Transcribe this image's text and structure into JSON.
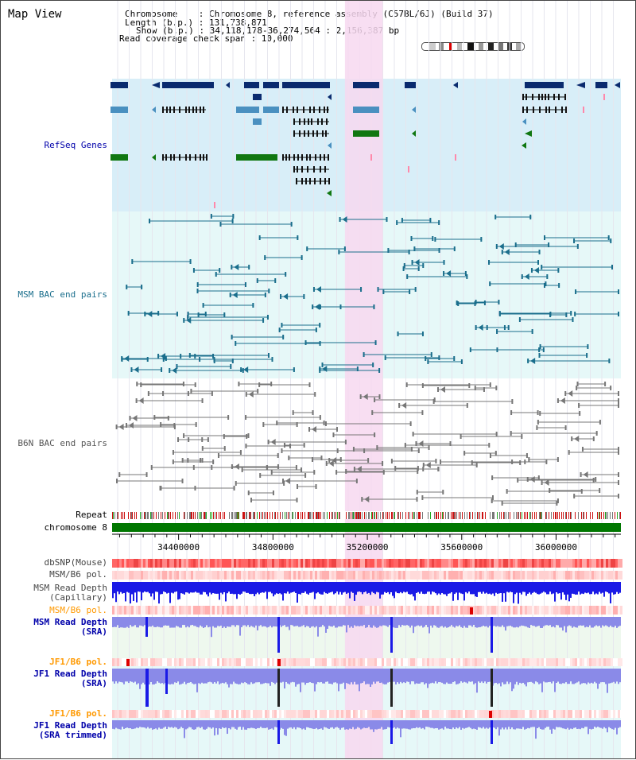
{
  "app": {
    "title": "Map View"
  },
  "info": {
    "line1": "Chromosome    : Chromosome 8, reference assembly (C57BL/6J) (Build 37)",
    "line2": "Length (b.p.) : 131,738,871",
    "line3": "Show (b.p.) : 34,118,178-36,274,564 : 2,156,387 bp",
    "line4": "Read coverage check span : 10,000"
  },
  "tracks": {
    "refseq": "RefSeq Genes",
    "msm_bac": "MSM BAC end pairs",
    "b6n_bac": "B6N BAC end pairs",
    "repeat": "Repeat",
    "chromosome": "chromosome 8",
    "dbsnp": "dbSNP(Mouse)",
    "msm_b6_pol": "MSM/B6 pol.",
    "msm_depth_cap_1": "MSM Read Depth",
    "msm_depth_cap_2": "(Capillary)",
    "msm_b6_pol_2": "MSM/B6 pol.",
    "msm_depth_sra_1": "MSM Read Depth",
    "msm_depth_sra_2": "(SRA)",
    "jf1_b6_pol": "JF1/B6 pol.",
    "jf1_depth_sra_1": "JF1 Read Depth",
    "jf1_depth_sra_2": "(SRA)",
    "jf1_b6_pol_2": "JF1/B6 pol.",
    "jf1_depth_trim_1": "JF1 Read Depth",
    "jf1_depth_trim_2": "(SRA trimmed)"
  },
  "axis": {
    "ticks": [
      "34400000",
      "34800000",
      "35200000",
      "35600000",
      "36000000"
    ],
    "tick_values": [
      34400000,
      34800000,
      35200000,
      35600000,
      36000000
    ],
    "view_start": 34118178,
    "view_end": 36274564
  },
  "highlight": {
    "start": 35105000,
    "end": 35265000
  },
  "colors": {
    "refseq_bg": "#d8eef8",
    "msm_bg": "#e6f8f8",
    "b6n_bg": "#ffffff",
    "highlight": "#f7d8f0",
    "chromosome_bar": "#007700",
    "msm_bac": "#1a6e8c",
    "b6n_bac": "#777777",
    "depth_blue": "#1a1ae6",
    "depth_light": "#8a8ae8",
    "label_blue": "#0000aa",
    "label_teal": "#1a6e8c",
    "label_orange": "#ff9900"
  }
}
